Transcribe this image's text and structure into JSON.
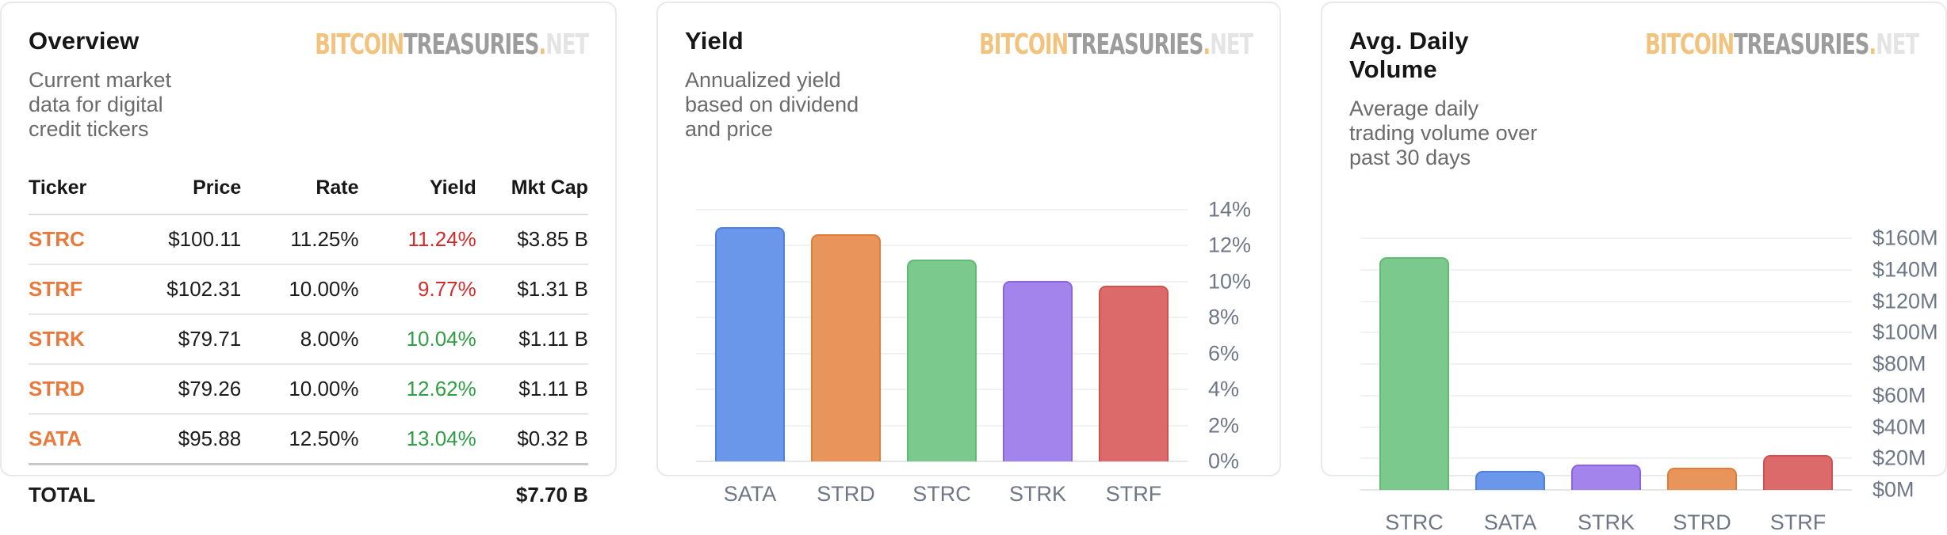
{
  "logo": {
    "part_bitcoin": "BITCOIN",
    "part_treasuries": "TREASURIES",
    "part_dot": ".",
    "part_net": "NET",
    "color_bitcoin": "#F2C37E",
    "color_treasuries": "#9C9C9C",
    "color_net": "#E4E4E4"
  },
  "overview": {
    "title": "Overview",
    "subtitle": "Current market data for digital credit tickers",
    "table": {
      "columns": [
        "Ticker",
        "Price",
        "Rate",
        "Yield",
        "Mkt Cap"
      ],
      "ticker_color": "#E87A3D",
      "yield_up_color": "#2F9E44",
      "yield_down_color": "#D32C2C",
      "rows": [
        {
          "ticker": "STRC",
          "price": "$100.11",
          "rate": "11.25%",
          "yield": "11.24%",
          "yield_dir": "down",
          "mkt_cap": "$3.85 B"
        },
        {
          "ticker": "STRF",
          "price": "$102.31",
          "rate": "10.00%",
          "yield": "9.77%",
          "yield_dir": "down",
          "mkt_cap": "$1.31 B"
        },
        {
          "ticker": "STRK",
          "price": "$79.71",
          "rate": "8.00%",
          "yield": "10.04%",
          "yield_dir": "up",
          "mkt_cap": "$1.11 B"
        },
        {
          "ticker": "STRD",
          "price": "$79.26",
          "rate": "10.00%",
          "yield": "12.62%",
          "yield_dir": "up",
          "mkt_cap": "$1.11 B"
        },
        {
          "ticker": "SATA",
          "price": "$95.88",
          "rate": "12.50%",
          "yield": "13.04%",
          "yield_dir": "up",
          "mkt_cap": "$0.32 B"
        }
      ],
      "total_label": "TOTAL",
      "total_mkt_cap": "$7.70 B"
    }
  },
  "yield_panel": {
    "title": "Yield",
    "subtitle": "Annualized yield based on dividend and price"
  },
  "volume_panel": {
    "title": "Avg. Daily Volume",
    "subtitle": "Average daily trading volume over past 30 days"
  },
  "ticker_colors": {
    "SATA": {
      "fill": "#6B97EB",
      "border": "#4F80DF"
    },
    "STRD": {
      "fill": "#E9945B",
      "border": "#DE7D39"
    },
    "STRC": {
      "fill": "#7BC98C",
      "border": "#5FBA73"
    },
    "STRK": {
      "fill": "#A384EC",
      "border": "#8A64E3"
    },
    "STRF": {
      "fill": "#DC6A6A",
      "border": "#D14F4F"
    }
  },
  "chart_data": [
    {
      "id": "yield",
      "type": "bar",
      "title": "Yield",
      "subtitle": "Annualized yield based on dividend and price",
      "categories": [
        "SATA",
        "STRD",
        "STRC",
        "STRK",
        "STRF"
      ],
      "values": [
        13.04,
        12.62,
        11.24,
        10.04,
        9.77
      ],
      "unit": "%",
      "xlabel": "",
      "ylabel": "",
      "ylim": [
        0,
        14
      ],
      "grid": true,
      "legend": false,
      "yticks": [
        {
          "value": 14,
          "label": "14%"
        },
        {
          "value": 12,
          "label": "12%"
        },
        {
          "value": 10,
          "label": "10%"
        },
        {
          "value": 8,
          "label": "8%"
        },
        {
          "value": 6,
          "label": "6%"
        },
        {
          "value": 4,
          "label": "4%"
        },
        {
          "value": 2,
          "label": "2%"
        },
        {
          "value": 0,
          "label": "0%"
        }
      ]
    },
    {
      "id": "avg-daily-volume",
      "type": "bar",
      "title": "Avg. Daily Volume",
      "subtitle": "Average daily trading volume over past 30 days",
      "categories": [
        "STRC",
        "SATA",
        "STRK",
        "STRD",
        "STRF"
      ],
      "values": [
        148,
        12,
        16,
        14,
        22
      ],
      "unit": "$M",
      "xlabel": "",
      "ylabel": "",
      "ylim": [
        0,
        160
      ],
      "grid": true,
      "legend": false,
      "yticks": [
        {
          "value": 160,
          "label": "$160M"
        },
        {
          "value": 140,
          "label": "$140M"
        },
        {
          "value": 120,
          "label": "$120M"
        },
        {
          "value": 100,
          "label": "$100M"
        },
        {
          "value": 80,
          "label": "$80M"
        },
        {
          "value": 60,
          "label": "$60M"
        },
        {
          "value": 40,
          "label": "$40M"
        },
        {
          "value": 20,
          "label": "$20M"
        },
        {
          "value": 0,
          "label": "$0M"
        }
      ]
    }
  ]
}
